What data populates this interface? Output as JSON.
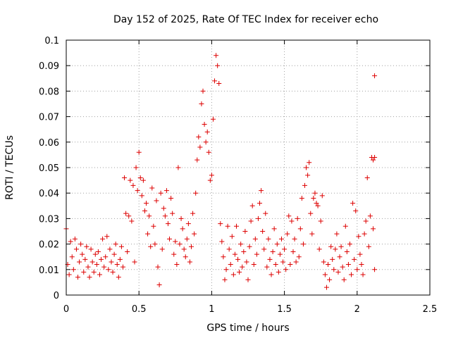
{
  "chart_data": {
    "type": "scatter",
    "title": "Day 152 of 2025, Rate Of TEC Index for receiver echo",
    "xlabel": "GPS time / hours",
    "ylabel": "ROTI / TECUs",
    "xlim": [
      0,
      2.5
    ],
    "ylim": [
      0,
      0.1
    ],
    "x_ticks": [
      "0",
      "0.5",
      "1",
      "1.5",
      "2",
      "2.5"
    ],
    "y_ticks": [
      "0",
      "0.01",
      "0.02",
      "0.03",
      "0.04",
      "0.05",
      "0.06",
      "0.07",
      "0.08",
      "0.09",
      "0.1"
    ],
    "grid": true,
    "marker": "plus",
    "color": "#dd0000",
    "points": [
      [
        0.0,
        0.026
      ],
      [
        0.01,
        0.012
      ],
      [
        0.02,
        0.008
      ],
      [
        0.03,
        0.021
      ],
      [
        0.04,
        0.015
      ],
      [
        0.05,
        0.01
      ],
      [
        0.06,
        0.022
      ],
      [
        0.07,
        0.018
      ],
      [
        0.08,
        0.007
      ],
      [
        0.09,
        0.013
      ],
      [
        0.1,
        0.02
      ],
      [
        0.11,
        0.016
      ],
      [
        0.12,
        0.009
      ],
      [
        0.13,
        0.014
      ],
      [
        0.14,
        0.019
      ],
      [
        0.15,
        0.011
      ],
      [
        0.16,
        0.007
      ],
      [
        0.17,
        0.018
      ],
      [
        0.18,
        0.013
      ],
      [
        0.19,
        0.009
      ],
      [
        0.2,
        0.016
      ],
      [
        0.21,
        0.012
      ],
      [
        0.22,
        0.017
      ],
      [
        0.23,
        0.008
      ],
      [
        0.24,
        0.014
      ],
      [
        0.25,
        0.022
      ],
      [
        0.26,
        0.011
      ],
      [
        0.27,
        0.015
      ],
      [
        0.28,
        0.023
      ],
      [
        0.29,
        0.01
      ],
      [
        0.3,
        0.018
      ],
      [
        0.31,
        0.013
      ],
      [
        0.32,
        0.009
      ],
      [
        0.33,
        0.016
      ],
      [
        0.34,
        0.02
      ],
      [
        0.35,
        0.012
      ],
      [
        0.36,
        0.007
      ],
      [
        0.37,
        0.014
      ],
      [
        0.38,
        0.019
      ],
      [
        0.39,
        0.011
      ],
      [
        0.4,
        0.046
      ],
      [
        0.41,
        0.032
      ],
      [
        0.42,
        0.017
      ],
      [
        0.43,
        0.031
      ],
      [
        0.44,
        0.045
      ],
      [
        0.45,
        0.029
      ],
      [
        0.46,
        0.043
      ],
      [
        0.47,
        0.013
      ],
      [
        0.48,
        0.05
      ],
      [
        0.49,
        0.041
      ],
      [
        0.5,
        0.056
      ],
      [
        0.51,
        0.046
      ],
      [
        0.52,
        0.039
      ],
      [
        0.53,
        0.045
      ],
      [
        0.54,
        0.033
      ],
      [
        0.55,
        0.036
      ],
      [
        0.56,
        0.024
      ],
      [
        0.57,
        0.031
      ],
      [
        0.58,
        0.019
      ],
      [
        0.59,
        0.042
      ],
      [
        0.6,
        0.027
      ],
      [
        0.61,
        0.02
      ],
      [
        0.62,
        0.037
      ],
      [
        0.63,
        0.011
      ],
      [
        0.64,
        0.004
      ],
      [
        0.65,
        0.04
      ],
      [
        0.66,
        0.018
      ],
      [
        0.67,
        0.034
      ],
      [
        0.68,
        0.031
      ],
      [
        0.69,
        0.041
      ],
      [
        0.7,
        0.028
      ],
      [
        0.71,
        0.022
      ],
      [
        0.72,
        0.038
      ],
      [
        0.73,
        0.032
      ],
      [
        0.74,
        0.016
      ],
      [
        0.75,
        0.021
      ],
      [
        0.76,
        0.012
      ],
      [
        0.77,
        0.05
      ],
      [
        0.78,
        0.02
      ],
      [
        0.79,
        0.03
      ],
      [
        0.8,
        0.026
      ],
      [
        0.81,
        0.018
      ],
      [
        0.82,
        0.015
      ],
      [
        0.83,
        0.022
      ],
      [
        0.84,
        0.028
      ],
      [
        0.85,
        0.013
      ],
      [
        0.86,
        0.019
      ],
      [
        0.87,
        0.032
      ],
      [
        0.88,
        0.024
      ],
      [
        0.89,
        0.04
      ],
      [
        0.9,
        0.053
      ],
      [
        0.91,
        0.062
      ],
      [
        0.92,
        0.058
      ],
      [
        0.93,
        0.075
      ],
      [
        0.94,
        0.08
      ],
      [
        0.95,
        0.067
      ],
      [
        0.96,
        0.06
      ],
      [
        0.97,
        0.064
      ],
      [
        0.98,
        0.056
      ],
      [
        0.99,
        0.045
      ],
      [
        1.0,
        0.047
      ],
      [
        1.01,
        0.069
      ],
      [
        1.02,
        0.084
      ],
      [
        1.03,
        0.094
      ],
      [
        1.04,
        0.09
      ],
      [
        1.05,
        0.083
      ],
      [
        1.06,
        0.028
      ],
      [
        1.07,
        0.021
      ],
      [
        1.08,
        0.015
      ],
      [
        1.09,
        0.006
      ],
      [
        1.1,
        0.01
      ],
      [
        1.11,
        0.027
      ],
      [
        1.12,
        0.018
      ],
      [
        1.13,
        0.012
      ],
      [
        1.14,
        0.023
      ],
      [
        1.15,
        0.008
      ],
      [
        1.16,
        0.016
      ],
      [
        1.17,
        0.027
      ],
      [
        1.18,
        0.014
      ],
      [
        1.19,
        0.009
      ],
      [
        1.2,
        0.02
      ],
      [
        1.21,
        0.011
      ],
      [
        1.22,
        0.017
      ],
      [
        1.23,
        0.025
      ],
      [
        1.24,
        0.013
      ],
      [
        1.25,
        0.006
      ],
      [
        1.26,
        0.019
      ],
      [
        1.27,
        0.029
      ],
      [
        1.28,
        0.035
      ],
      [
        1.29,
        0.012
      ],
      [
        1.3,
        0.022
      ],
      [
        1.31,
        0.016
      ],
      [
        1.32,
        0.03
      ],
      [
        1.33,
        0.036
      ],
      [
        1.34,
        0.041
      ],
      [
        1.35,
        0.025
      ],
      [
        1.36,
        0.018
      ],
      [
        1.37,
        0.032
      ],
      [
        1.38,
        0.011
      ],
      [
        1.39,
        0.022
      ],
      [
        1.4,
        0.014
      ],
      [
        1.41,
        0.008
      ],
      [
        1.42,
        0.017
      ],
      [
        1.43,
        0.026
      ],
      [
        1.44,
        0.012
      ],
      [
        1.45,
        0.02
      ],
      [
        1.46,
        0.009
      ],
      [
        1.47,
        0.016
      ],
      [
        1.48,
        0.022
      ],
      [
        1.49,
        0.013
      ],
      [
        1.5,
        0.018
      ],
      [
        1.51,
        0.01
      ],
      [
        1.52,
        0.024
      ],
      [
        1.53,
        0.031
      ],
      [
        1.54,
        0.012
      ],
      [
        1.55,
        0.029
      ],
      [
        1.56,
        0.017
      ],
      [
        1.57,
        0.022
      ],
      [
        1.58,
        0.013
      ],
      [
        1.59,
        0.03
      ],
      [
        1.6,
        0.015
      ],
      [
        1.61,
        0.026
      ],
      [
        1.62,
        0.038
      ],
      [
        1.63,
        0.02
      ],
      [
        1.64,
        0.043
      ],
      [
        1.65,
        0.05
      ],
      [
        1.66,
        0.047
      ],
      [
        1.67,
        0.052
      ],
      [
        1.68,
        0.032
      ],
      [
        1.69,
        0.024
      ],
      [
        1.7,
        0.038
      ],
      [
        1.71,
        0.04
      ],
      [
        1.72,
        0.036
      ],
      [
        1.73,
        0.035
      ],
      [
        1.74,
        0.018
      ],
      [
        1.75,
        0.029
      ],
      [
        1.76,
        0.039
      ],
      [
        1.77,
        0.013
      ],
      [
        1.78,
        0.008
      ],
      [
        1.79,
        0.003
      ],
      [
        1.8,
        0.012
      ],
      [
        1.81,
        0.006
      ],
      [
        1.82,
        0.019
      ],
      [
        1.83,
        0.014
      ],
      [
        1.84,
        0.01
      ],
      [
        1.85,
        0.018
      ],
      [
        1.86,
        0.024
      ],
      [
        1.87,
        0.009
      ],
      [
        1.88,
        0.015
      ],
      [
        1.89,
        0.019
      ],
      [
        1.9,
        0.011
      ],
      [
        1.91,
        0.006
      ],
      [
        1.92,
        0.027
      ],
      [
        1.93,
        0.017
      ],
      [
        1.94,
        0.012
      ],
      [
        1.95,
        0.02
      ],
      [
        1.96,
        0.008
      ],
      [
        1.97,
        0.036
      ],
      [
        1.98,
        0.014
      ],
      [
        1.99,
        0.033
      ],
      [
        2.0,
        0.01
      ],
      [
        2.01,
        0.023
      ],
      [
        2.02,
        0.016
      ],
      [
        2.03,
        0.012
      ],
      [
        2.04,
        0.008
      ],
      [
        2.05,
        0.024
      ],
      [
        2.06,
        0.029
      ],
      [
        2.07,
        0.046
      ],
      [
        2.08,
        0.019
      ],
      [
        2.09,
        0.031
      ],
      [
        2.1,
        0.054
      ],
      [
        2.11,
        0.053
      ],
      [
        2.12,
        0.086
      ],
      [
        2.12,
        0.054
      ],
      [
        2.12,
        0.01
      ],
      [
        2.11,
        0.026
      ]
    ]
  }
}
